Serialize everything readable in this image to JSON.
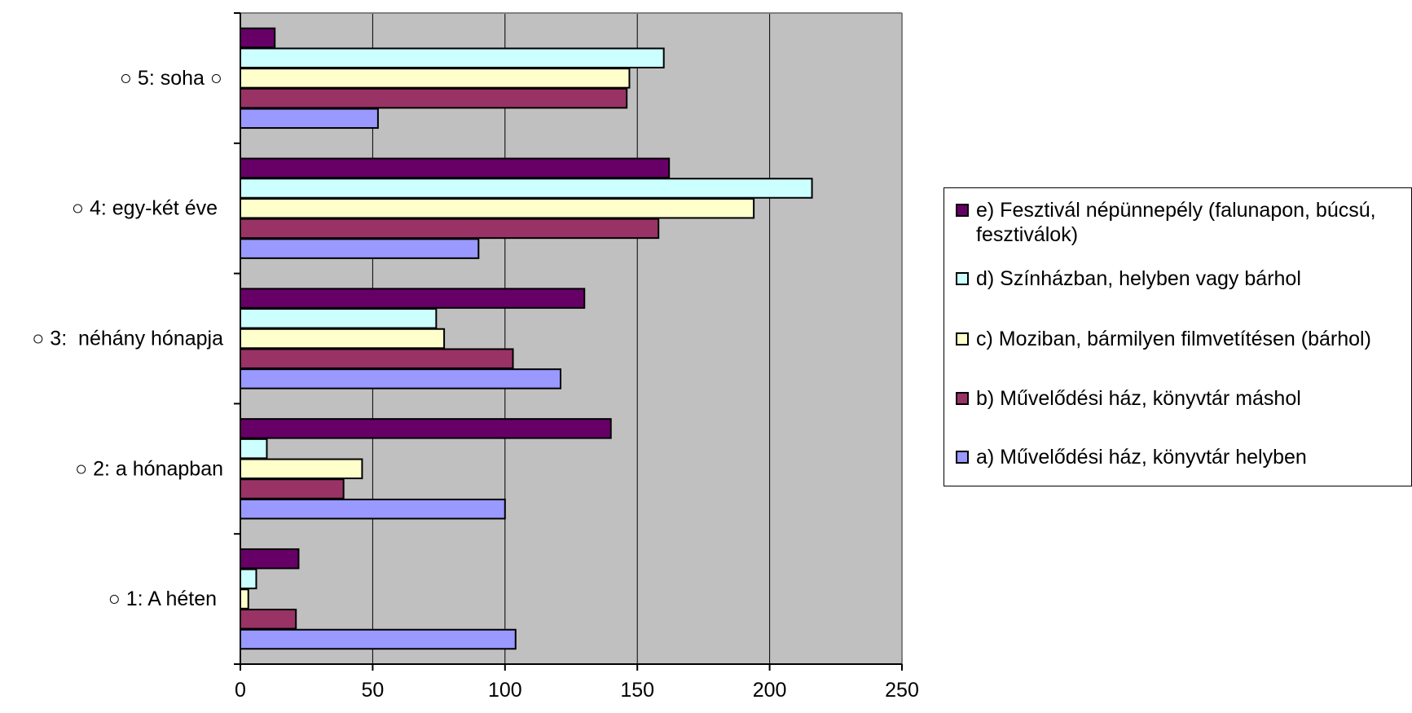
{
  "chart_data": {
    "type": "bar",
    "orientation": "horizontal",
    "categories": [
      "○ 1: A héten",
      "○ 2: a hónapban",
      "○ 3:  néhány hónapja",
      "○ 4: egy-két éve",
      "○ 5: soha ○"
    ],
    "series": [
      {
        "name": "a) Művelődési ház, könyvtár helyben",
        "color": "#9999ff",
        "values": [
          104,
          100,
          121,
          90,
          52
        ]
      },
      {
        "name": "b) Művelődési ház, könyvtár máshol",
        "color": "#993366",
        "values": [
          21,
          39,
          103,
          158,
          146
        ]
      },
      {
        "name": "c) Moziban, bármilyen filmvetítésen (bárhol)",
        "color": "#ffffcc",
        "values": [
          3,
          46,
          77,
          194,
          147
        ]
      },
      {
        "name": "d) Színházban, helyben vagy bárhol",
        "color": "#ccffff",
        "values": [
          6,
          10,
          74,
          216,
          160
        ]
      },
      {
        "name": "e) Fesztivál népünnepély (falunapon, búcsú, fesztiválok)",
        "color": "#660066",
        "values": [
          22,
          140,
          130,
          162,
          13
        ]
      }
    ],
    "xlim": [
      0,
      250
    ],
    "xticks": [
      "0",
      "50",
      "100",
      "150",
      "200",
      "250"
    ],
    "grid": "vertical",
    "plot_background": "#c0c0c0",
    "legend_position": "right",
    "title": "",
    "xlabel": "",
    "ylabel": ""
  }
}
